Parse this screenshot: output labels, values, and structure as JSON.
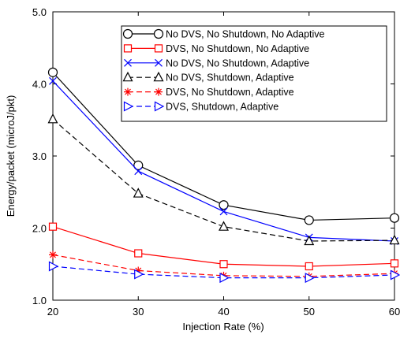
{
  "chart_data": {
    "type": "line",
    "xlabel": "Injection Rate (%)",
    "ylabel": "Energy/packet (microJ/pkt)",
    "x": [
      20,
      30,
      40,
      50,
      60
    ],
    "xlim": [
      20,
      60
    ],
    "ylim": [
      1.0,
      5.0
    ],
    "xticks": [
      "20",
      "30",
      "40",
      "50",
      "60"
    ],
    "yticks": [
      "1.0",
      "2.0",
      "3.0",
      "4.0",
      "5.0"
    ],
    "legend_position": "top-right",
    "grid": false,
    "series": [
      {
        "name": "No DVS, No Shutdown, No Adaptive",
        "values": [
          4.16,
          2.87,
          2.32,
          2.11,
          2.14
        ],
        "color": "#000000",
        "marker": "circle",
        "dash": "solid"
      },
      {
        "name": "DVS, No Shutdown, No Adaptive",
        "values": [
          2.02,
          1.65,
          1.5,
          1.47,
          1.51
        ],
        "color": "#ff0000",
        "marker": "square",
        "dash": "solid"
      },
      {
        "name": "No DVS, No Shutdown, Adaptive",
        "values": [
          4.04,
          2.79,
          2.23,
          1.87,
          1.82
        ],
        "color": "#0000ff",
        "marker": "x",
        "dash": "solid"
      },
      {
        "name": "No DVS, Shutdown, Adaptive",
        "values": [
          3.51,
          2.48,
          2.02,
          1.82,
          1.83
        ],
        "color": "#000000",
        "marker": "triangle-up",
        "dash": "dashed"
      },
      {
        "name": "DVS, No Shutdown, Adaptive",
        "values": [
          1.63,
          1.41,
          1.34,
          1.33,
          1.37
        ],
        "color": "#ff0000",
        "marker": "star",
        "dash": "dashed"
      },
      {
        "name": "DVS, Shutdown, Adaptive",
        "values": [
          1.47,
          1.36,
          1.31,
          1.31,
          1.35
        ],
        "color": "#0000ff",
        "marker": "triangle-right",
        "dash": "dashed"
      }
    ]
  }
}
